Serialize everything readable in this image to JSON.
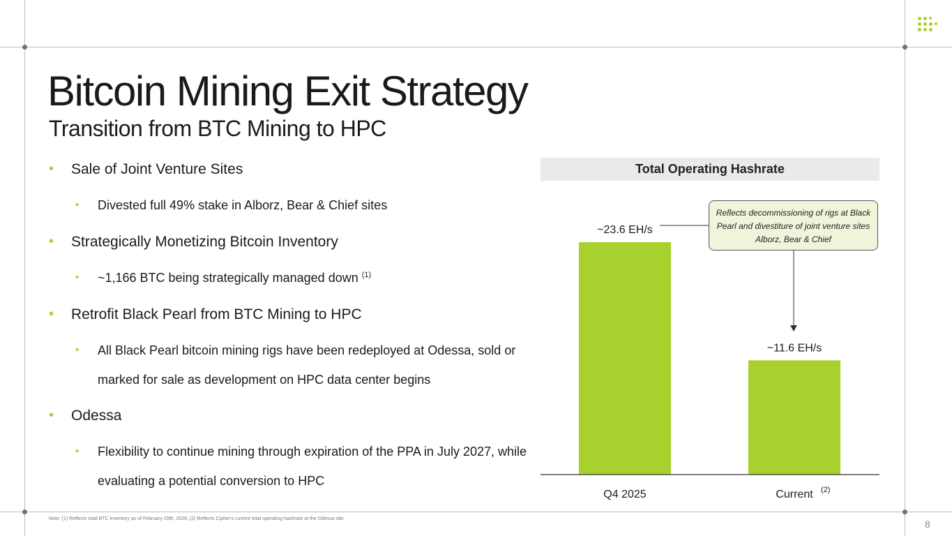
{
  "title": "Bitcoin Mining Exit Strategy",
  "subtitle": "Transition from BTC Mining to HPC",
  "bullet_glyph": "•",
  "bullets": [
    {
      "text": "Sale of Joint Venture Sites",
      "subs": [
        {
          "text": "Divested full 49% stake in Alborz, Bear & Chief sites"
        }
      ]
    },
    {
      "text": "Strategically Monetizing Bitcoin Inventory",
      "subs": [
        {
          "text": "~1,166 BTC being strategically managed down",
          "sup": "(1)"
        }
      ]
    },
    {
      "text": "Retrofit Black Pearl from BTC Mining to HPC",
      "subs": [
        {
          "text": "All Black Pearl bitcoin mining rigs have been redeployed at Odessa, sold or marked for sale as development on HPC data center begins"
        }
      ]
    },
    {
      "text": "Odessa",
      "subs": [
        {
          "text": "Flexibility to continue mining through expiration of the PPA in July 2027, while evaluating a potential conversion to HPC"
        }
      ]
    }
  ],
  "chart_data": {
    "type": "bar",
    "title": "Total Operating Hashrate",
    "categories": [
      "Q4 2025",
      "Current"
    ],
    "category_sups": [
      "",
      "(2)"
    ],
    "values": [
      23.6,
      11.6
    ],
    "data_labels": [
      "~23.6 EH/s",
      "~11.6 EH/s"
    ],
    "unit": "EH/s",
    "ylim": [
      0,
      23.6
    ],
    "grid": false,
    "legend": "none",
    "bar_color": "#a8d12e",
    "annotation": "Reflects decommissioning of rigs at Black Pearl and divestiture of joint venture sites Alborz, Bear & Chief"
  },
  "footnote": "Note: (1) Reflects total BTC inventory as of February 20th, 2026; (2) Reflects Cipher's current total operating hashrate at the Odessa site",
  "page_number": "8",
  "colors": {
    "accent": "#a8d12e",
    "frame": "#b8bcc0",
    "header_bg": "#e9eaeb",
    "callout_bg": "#eef5da"
  },
  "logo_icon": "dot-grid-logo-icon"
}
